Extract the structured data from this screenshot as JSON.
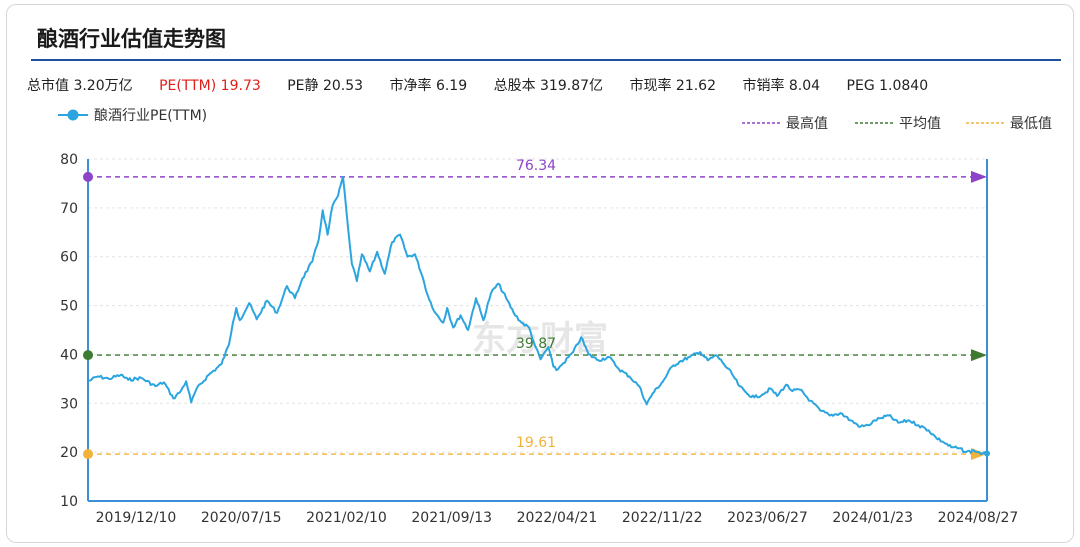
{
  "title": "酿酒行业估值走势图",
  "stats": [
    {
      "text": "总市值 3.20万亿",
      "color": "#222222"
    },
    {
      "text": "PE(TTM) 19.73",
      "color": "#e0201a"
    },
    {
      "text": "PE静 20.53",
      "color": "#222222"
    },
    {
      "text": "市净率 6.19",
      "color": "#222222"
    },
    {
      "text": "总股本 319.87亿",
      "color": "#222222"
    },
    {
      "text": "市现率 21.62",
      "color": "#222222"
    },
    {
      "text": "市销率 8.04",
      "color": "#222222"
    },
    {
      "text": "PEG 1.0840",
      "color": "#222222"
    }
  ],
  "watermark": "东方财富",
  "chart_data": {
    "type": "line",
    "xlabel": "",
    "ylabel": "",
    "ylim": [
      10,
      80
    ],
    "yticks": [
      10,
      20,
      30,
      40,
      50,
      60,
      70,
      80
    ],
    "xlim": [
      "2019-09-20",
      "2024-09-05"
    ],
    "x_tick_labels": [
      "2019/12/10",
      "2020/07/15",
      "2021/02/10",
      "2021/09/13",
      "2022/04/21",
      "2022/11/22",
      "2023/06/27",
      "2024/01/23",
      "2024/08/27"
    ],
    "grid": "horizontal-dashed",
    "series": [
      {
        "name": "酿酒行业PE(TTM)",
        "color": "#2ba5e0",
        "points": [
          [
            "2019-09-20",
            34.5
          ],
          [
            "2019-10-10",
            35.5
          ],
          [
            "2019-11-01",
            35.0
          ],
          [
            "2019-11-25",
            35.8
          ],
          [
            "2019-12-10",
            34.8
          ],
          [
            "2020-01-05",
            35.2
          ],
          [
            "2020-02-03",
            33.5
          ],
          [
            "2020-02-20",
            34.3
          ],
          [
            "2020-03-10",
            31.0
          ],
          [
            "2020-03-25",
            32.5
          ],
          [
            "2020-04-05",
            34.5
          ],
          [
            "2020-04-15",
            30.2
          ],
          [
            "2020-04-25",
            32.8
          ],
          [
            "2020-05-20",
            35.8
          ],
          [
            "2020-06-15",
            38.0
          ],
          [
            "2020-06-30",
            42.0
          ],
          [
            "2020-07-08",
            46.5
          ],
          [
            "2020-07-15",
            49.5
          ],
          [
            "2020-07-22",
            47.0
          ],
          [
            "2020-08-10",
            50.5
          ],
          [
            "2020-08-25",
            47.2
          ],
          [
            "2020-09-15",
            51.0
          ],
          [
            "2020-10-05",
            48.5
          ],
          [
            "2020-10-25",
            54.0
          ],
          [
            "2020-11-10",
            51.5
          ],
          [
            "2020-11-25",
            55.5
          ],
          [
            "2020-12-15",
            59.0
          ],
          [
            "2020-12-28",
            63.5
          ],
          [
            "2021-01-05",
            69.5
          ],
          [
            "2021-01-15",
            64.5
          ],
          [
            "2021-01-25",
            70.5
          ],
          [
            "2021-02-05",
            72.5
          ],
          [
            "2021-02-10",
            74.5
          ],
          [
            "2021-02-15",
            76.34
          ],
          [
            "2021-02-25",
            66.0
          ],
          [
            "2021-03-05",
            58.5
          ],
          [
            "2021-03-15",
            55.0
          ],
          [
            "2021-03-25",
            60.5
          ],
          [
            "2021-04-10",
            57.0
          ],
          [
            "2021-04-25",
            61.0
          ],
          [
            "2021-05-10",
            56.5
          ],
          [
            "2021-05-25",
            63.0
          ],
          [
            "2021-06-10",
            64.5
          ],
          [
            "2021-06-25",
            60.0
          ],
          [
            "2021-07-10",
            60.5
          ],
          [
            "2021-07-25",
            56.0
          ],
          [
            "2021-08-05",
            52.0
          ],
          [
            "2021-08-20",
            48.5
          ],
          [
            "2021-09-05",
            46.5
          ],
          [
            "2021-09-13",
            49.5
          ],
          [
            "2021-09-25",
            45.5
          ],
          [
            "2021-10-10",
            48.0
          ],
          [
            "2021-10-25",
            45.0
          ],
          [
            "2021-11-10",
            51.5
          ],
          [
            "2021-11-25",
            47.0
          ],
          [
            "2021-12-10",
            52.5
          ],
          [
            "2021-12-25",
            54.5
          ],
          [
            "2022-01-10",
            51.5
          ],
          [
            "2022-01-25",
            48.5
          ],
          [
            "2022-02-10",
            46.5
          ],
          [
            "2022-02-25",
            45.5
          ],
          [
            "2022-03-10",
            41.5
          ],
          [
            "2022-03-20",
            39.0
          ],
          [
            "2022-04-05",
            41.5
          ],
          [
            "2022-04-15",
            37.5
          ],
          [
            "2022-04-21",
            36.8
          ],
          [
            "2022-05-05",
            38.2
          ],
          [
            "2022-05-25",
            40.5
          ],
          [
            "2022-06-10",
            43.5
          ],
          [
            "2022-06-25",
            40.0
          ],
          [
            "2022-07-15",
            38.8
          ],
          [
            "2022-08-05",
            39.5
          ],
          [
            "2022-08-25",
            37.0
          ],
          [
            "2022-09-15",
            35.5
          ],
          [
            "2022-10-05",
            33.5
          ],
          [
            "2022-10-20",
            29.8
          ],
          [
            "2022-11-01",
            32.0
          ],
          [
            "2022-11-22",
            34.5
          ],
          [
            "2022-12-10",
            37.5
          ],
          [
            "2022-12-25",
            38.5
          ],
          [
            "2023-01-15",
            39.5
          ],
          [
            "2023-02-05",
            40.5
          ],
          [
            "2023-02-20",
            38.8
          ],
          [
            "2023-03-10",
            39.8
          ],
          [
            "2023-03-25",
            38.0
          ],
          [
            "2023-04-10",
            36.0
          ],
          [
            "2023-04-25",
            33.5
          ],
          [
            "2023-05-10",
            32.0
          ],
          [
            "2023-05-25",
            31.2
          ],
          [
            "2023-06-10",
            31.8
          ],
          [
            "2023-06-27",
            33.0
          ],
          [
            "2023-07-10",
            31.5
          ],
          [
            "2023-07-28",
            33.8
          ],
          [
            "2023-08-10",
            32.5
          ],
          [
            "2023-08-25",
            32.8
          ],
          [
            "2023-09-15",
            30.5
          ],
          [
            "2023-10-05",
            28.5
          ],
          [
            "2023-10-25",
            27.5
          ],
          [
            "2023-11-15",
            28.0
          ],
          [
            "2023-12-05",
            26.5
          ],
          [
            "2023-12-25",
            25.2
          ],
          [
            "2024-01-10",
            25.5
          ],
          [
            "2024-01-23",
            26.5
          ],
          [
            "2024-02-05",
            27.0
          ],
          [
            "2024-02-20",
            27.5
          ],
          [
            "2024-03-10",
            26.0
          ],
          [
            "2024-04-01",
            26.5
          ],
          [
            "2024-04-20",
            25.5
          ],
          [
            "2024-05-10",
            24.5
          ],
          [
            "2024-05-25",
            23.0
          ],
          [
            "2024-06-10",
            22.0
          ],
          [
            "2024-06-25",
            21.0
          ],
          [
            "2024-07-10",
            20.8
          ],
          [
            "2024-07-25",
            20.0
          ],
          [
            "2024-08-10",
            20.3
          ],
          [
            "2024-08-27",
            19.7
          ],
          [
            "2024-09-05",
            19.73
          ]
        ]
      }
    ],
    "reference_lines": [
      {
        "name": "最高值",
        "value": 76.34,
        "label": "76.34",
        "color": "#8e44c9"
      },
      {
        "name": "平均值",
        "value": 39.87,
        "label": "39.87",
        "color": "#3f7a33"
      },
      {
        "name": "最低值",
        "value": 19.61,
        "label": "19.61",
        "color": "#f3b23a"
      }
    ],
    "legend": "top"
  }
}
